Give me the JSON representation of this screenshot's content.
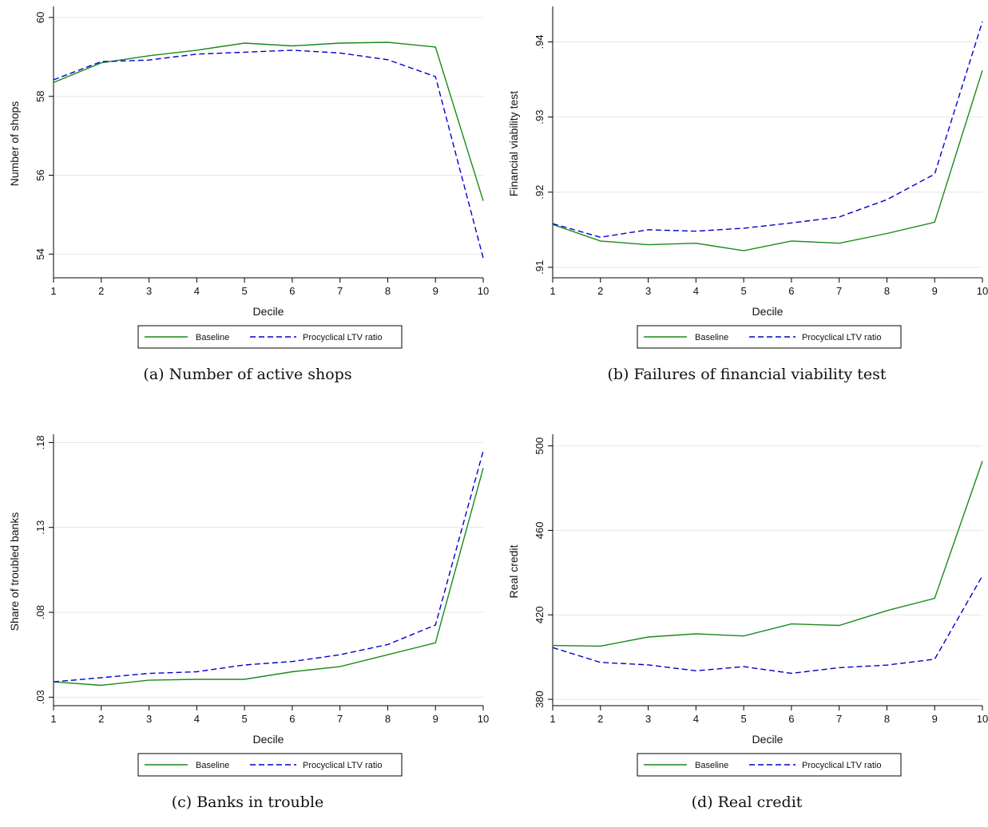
{
  "colors": {
    "baseline": "#1a8a1a",
    "procyclical": "#0000cc",
    "grid": "#e6e6e6",
    "axis": "#000000"
  },
  "legend": {
    "baseline": "Baseline",
    "procyclical": "Procyclical LTV ratio"
  },
  "chart_data": [
    {
      "type": "line",
      "caption": "(a)  Number of active shops",
      "xlabel": "Decile",
      "ylabel": "Number of shops",
      "x": [
        1,
        2,
        3,
        4,
        5,
        6,
        7,
        8,
        9,
        10
      ],
      "ylim": [
        53.4,
        60.2
      ],
      "yticks": [
        54,
        56,
        58,
        60
      ],
      "ytick_labels": [
        "54",
        "56",
        "58",
        "60"
      ],
      "series": [
        {
          "name": "Baseline",
          "values": [
            58.35,
            58.85,
            59.03,
            59.17,
            59.35,
            59.28,
            59.35,
            59.37,
            59.25,
            55.35
          ]
        },
        {
          "name": "Procyclical LTV ratio",
          "values": [
            58.42,
            58.88,
            58.92,
            59.07,
            59.12,
            59.17,
            59.1,
            58.93,
            58.5,
            53.9
          ]
        }
      ]
    },
    {
      "type": "line",
      "caption": "(b)  Failures of financial viability test",
      "xlabel": "Decile",
      "ylabel": "Financial viability test",
      "x": [
        1,
        2,
        3,
        4,
        5,
        6,
        7,
        8,
        9,
        10
      ],
      "ylim": [
        0.9086,
        0.9443
      ],
      "yticks": [
        0.91,
        0.92,
        0.93,
        0.94
      ],
      "ytick_labels": [
        ".91",
        ".92",
        ".93",
        ".94"
      ],
      "series": [
        {
          "name": "Baseline",
          "values": [
            0.9157,
            0.9135,
            0.913,
            0.9132,
            0.9122,
            0.9135,
            0.9132,
            0.9145,
            0.916,
            0.9362
          ]
        },
        {
          "name": "Procyclical LTV ratio",
          "values": [
            0.9158,
            0.914,
            0.915,
            0.9148,
            0.9152,
            0.9159,
            0.9167,
            0.919,
            0.9224,
            0.9427
          ]
        }
      ]
    },
    {
      "type": "line",
      "caption": "(c)  Banks in trouble",
      "xlabel": "Decile",
      "ylabel": "Share of troubled banks",
      "x": [
        1,
        2,
        3,
        4,
        5,
        6,
        7,
        8,
        9,
        10
      ],
      "ylim": [
        0.025,
        0.183
      ],
      "yticks": [
        0.03,
        0.08,
        0.13,
        0.18
      ],
      "ytick_labels": [
        ".03",
        ".08",
        ".13",
        ".18"
      ],
      "series": [
        {
          "name": "Baseline",
          "values": [
            0.039,
            0.037,
            0.04,
            0.0405,
            0.0405,
            0.045,
            0.048,
            0.055,
            0.062,
            0.165
          ]
        },
        {
          "name": "Procyclical LTV ratio",
          "values": [
            0.039,
            0.0415,
            0.044,
            0.045,
            0.049,
            0.051,
            0.055,
            0.061,
            0.0725,
            0.175
          ]
        }
      ]
    },
    {
      "type": "line",
      "caption": "(d)  Real credit",
      "xlabel": "Decile",
      "ylabel": "Real credit",
      "x": [
        1,
        2,
        3,
        4,
        5,
        6,
        7,
        8,
        9,
        10
      ],
      "ylim": [
        377,
        504
      ],
      "yticks": [
        380,
        420,
        460,
        500
      ],
      "ytick_labels": [
        "380",
        "420",
        "460",
        "500"
      ],
      "series": [
        {
          "name": "Baseline",
          "values": [
            405.5,
            405.2,
            409.5,
            411,
            410,
            415.7,
            415,
            422,
            427.8,
            492.8
          ]
        },
        {
          "name": "Procyclical LTV ratio",
          "values": [
            404.5,
            397.5,
            396.3,
            393.5,
            395.5,
            392.3,
            395,
            396.2,
            399,
            438.5
          ]
        }
      ]
    }
  ]
}
